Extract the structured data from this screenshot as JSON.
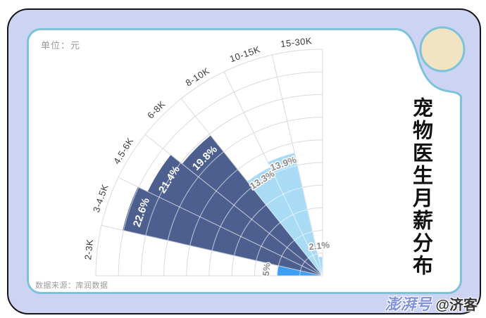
{
  "header": {
    "unit_label": "单位：元"
  },
  "title_vertical": "宠物医生月薪分布",
  "footer": {
    "source": "数据来源：库润数据"
  },
  "watermark": {
    "brand": "澎湃号",
    "handle": "@济客"
  },
  "chart_data": {
    "type": "bar",
    "subtype": "polar-fan-rose",
    "title": "宠物医生月薪分布",
    "unit": "元",
    "categories": [
      "2-3K",
      "3-4.5K",
      "4.5-6K",
      "6-8K",
      "8-10K",
      "10-15K",
      "15-30K"
    ],
    "values": [
      5,
      22.6,
      21.4,
      19.8,
      13.3,
      13.9,
      2.1
    ],
    "display_labels": [
      "5%",
      "22.6%",
      "21.4%",
      "19.8%",
      "13.3%",
      "13.9%",
      "2.1%"
    ],
    "wedge_color_keys": [
      "bright_blue",
      "navy",
      "navy",
      "navy",
      "light_blue",
      "light_blue",
      "light_blue"
    ],
    "palette": {
      "navy": "#4d5f8e",
      "light_blue": "#a9dbf4",
      "bright_blue": "#3e9ef2"
    },
    "axis": {
      "start_deg": 90,
      "end_deg": 180,
      "sectors": 7,
      "rmax_percent": 25,
      "ring_step_percent": 2.5,
      "grid": true,
      "legend": "none"
    }
  },
  "colors": {
    "frame_fill": "#ccd3f3",
    "frame_border": "#151515",
    "card_border": "#7cc3d9",
    "card_bg": "#ffffff",
    "circle_fill": "#f2e3c2",
    "grid_line": "#d9dae1",
    "grid_line_over_wedge": "rgba(255,255,255,0.55)",
    "category_label": "#3b3b3b",
    "value_label_gray": "#8c8c8c",
    "value_label_white": "#ffffff",
    "unit_text": "#9a9a9a",
    "source_text": "#9b9b9b",
    "watermark_brand_color": "#8293dd",
    "watermark_handle_color": "#333333",
    "title_color": "#111111"
  }
}
